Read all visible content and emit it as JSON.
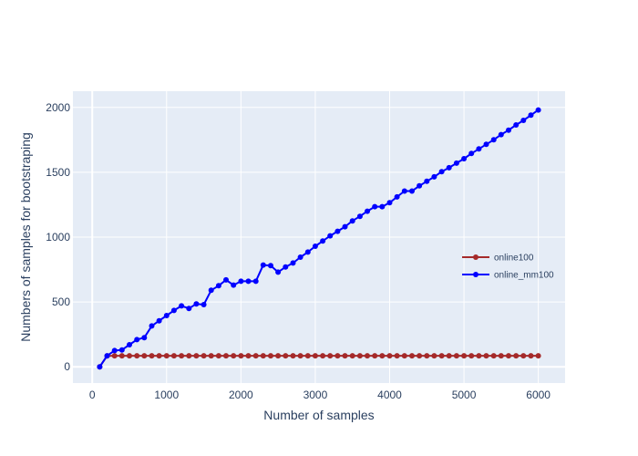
{
  "chart_data": {
    "type": "line",
    "xlabel": "Number of samples",
    "ylabel": "Numbers of samples for bootstraping",
    "xlim": [
      -260,
      6360
    ],
    "ylim": [
      -125,
      2125
    ],
    "x_ticks": [
      0,
      1000,
      2000,
      3000,
      4000,
      5000,
      6000
    ],
    "y_ticks": [
      0,
      500,
      1000,
      1500,
      2000
    ],
    "grid": true,
    "legend_position": "right",
    "colors": {
      "plot_background": "#e5ecf6",
      "grid": "#ffffff",
      "text": "#2a3f5f"
    },
    "series": [
      {
        "name": "online100",
        "color": "#a52a2a",
        "x": [
          100,
          200,
          300,
          400,
          500,
          600,
          700,
          800,
          900,
          1000,
          1100,
          1200,
          1300,
          1400,
          1500,
          1600,
          1700,
          1800,
          1900,
          2000,
          2100,
          2200,
          2300,
          2400,
          2500,
          2600,
          2700,
          2800,
          2900,
          3000,
          3100,
          3200,
          3300,
          3400,
          3500,
          3600,
          3700,
          3800,
          3900,
          4000,
          4100,
          4200,
          4300,
          4400,
          4500,
          4600,
          4700,
          4800,
          4900,
          5000,
          5100,
          5200,
          5300,
          5400,
          5500,
          5600,
          5700,
          5800,
          5900,
          6000
        ],
        "y": [
          0,
          84,
          85,
          85,
          85,
          85,
          85,
          85,
          85,
          85,
          85,
          85,
          85,
          85,
          85,
          85,
          85,
          85,
          85,
          85,
          85,
          85,
          85,
          85,
          85,
          85,
          85,
          85,
          85,
          85,
          85,
          85,
          85,
          85,
          85,
          85,
          85,
          85,
          85,
          85,
          85,
          85,
          85,
          85,
          85,
          85,
          85,
          85,
          85,
          85,
          85,
          85,
          85,
          85,
          85,
          85,
          85,
          85,
          85,
          85
        ]
      },
      {
        "name": "online_mm100",
        "color": "#0000ff",
        "x": [
          100,
          200,
          300,
          400,
          500,
          600,
          700,
          800,
          900,
          1000,
          1100,
          1200,
          1300,
          1400,
          1500,
          1600,
          1700,
          1800,
          1900,
          2000,
          2100,
          2200,
          2300,
          2400,
          2500,
          2600,
          2700,
          2800,
          2900,
          3000,
          3100,
          3200,
          3300,
          3400,
          3500,
          3600,
          3700,
          3800,
          3900,
          4000,
          4100,
          4200,
          4300,
          4400,
          4500,
          4600,
          4700,
          4800,
          4900,
          5000,
          5100,
          5200,
          5300,
          5400,
          5500,
          5600,
          5700,
          5800,
          5900,
          6000
        ],
        "y": [
          0,
          85,
          125,
          130,
          170,
          210,
          225,
          315,
          355,
          395,
          435,
          470,
          450,
          485,
          480,
          590,
          625,
          670,
          630,
          660,
          660,
          660,
          785,
          780,
          730,
          770,
          800,
          845,
          885,
          930,
          970,
          1010,
          1045,
          1080,
          1125,
          1160,
          1200,
          1235,
          1235,
          1265,
          1310,
          1355,
          1355,
          1395,
          1430,
          1465,
          1505,
          1535,
          1570,
          1605,
          1645,
          1680,
          1715,
          1750,
          1790,
          1825,
          1865,
          1900,
          1940,
          1980
        ]
      }
    ]
  }
}
